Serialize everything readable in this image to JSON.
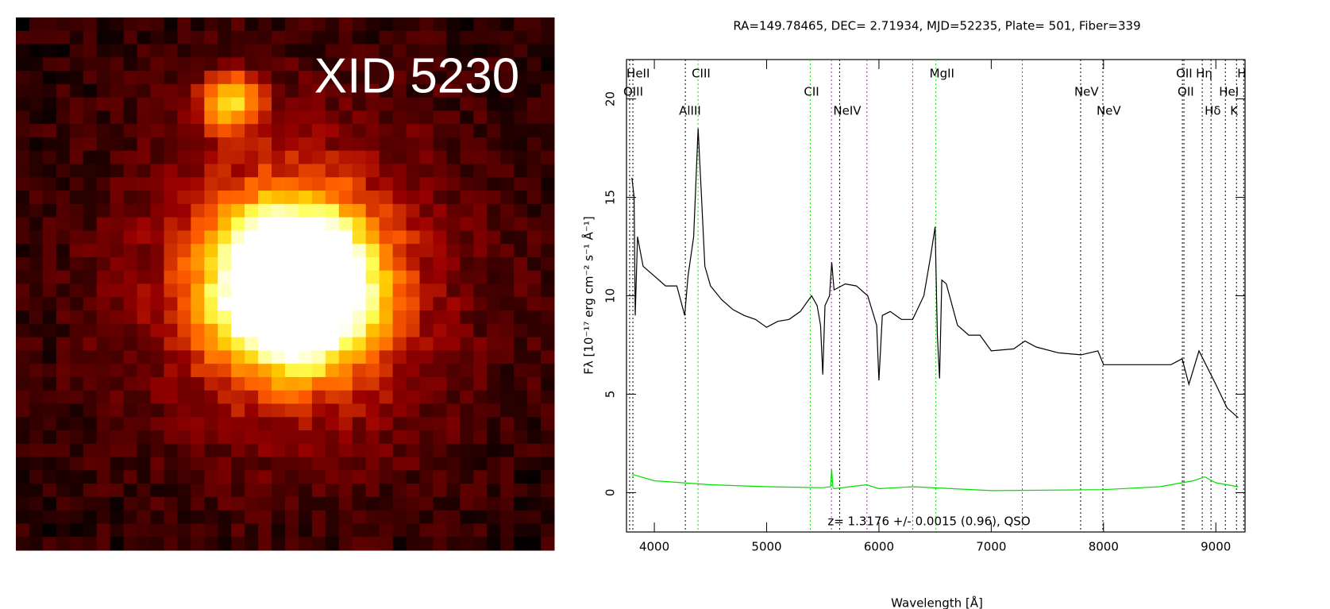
{
  "image": {
    "label": "XID 5230"
  },
  "chart_data": {
    "type": "line",
    "title": "RA=149.78465, DEC= 2.71934, MJD=52235, Plate= 501, Fiber=339",
    "y_label": "Fλ [10⁻¹⁷ erg cm⁻² s⁻¹ Å⁻¹]",
    "x_label": "Wavelength [Å]",
    "annotation": "z= 1.3176 +/- 0.0015 (0.96), QSO",
    "xlim": [
      3752,
      9260
    ],
    "ylim": [
      -2,
      22
    ],
    "xticks": [
      4000,
      5000,
      6000,
      7000,
      8000,
      9000
    ],
    "yticks": [
      0,
      5,
      10,
      15,
      20
    ],
    "series": [
      {
        "name": "flux",
        "color": "#000000",
        "x": [
          3800,
          3820,
          3830,
          3850,
          3900,
          4000,
          4100,
          4200,
          4270,
          4300,
          4350,
          4390,
          4420,
          4450,
          4500,
          4600,
          4700,
          4800,
          4900,
          5000,
          5100,
          5200,
          5300,
          5400,
          5450,
          5480,
          5500,
          5520,
          5560,
          5580,
          5600,
          5700,
          5800,
          5900,
          5980,
          6000,
          6030,
          6100,
          6200,
          6300,
          6400,
          6460,
          6500,
          6520,
          6540,
          6560,
          6600,
          6700,
          6800,
          6900,
          7000,
          7200,
          7300,
          7400,
          7600,
          7800,
          7950,
          8000,
          8200,
          8400,
          8600,
          8700,
          8760,
          8850,
          9000,
          9100,
          9200
        ],
        "values": [
          16,
          15,
          9,
          13,
          11.5,
          11,
          10.5,
          10.5,
          9,
          11,
          13,
          18.5,
          15,
          11.5,
          10.5,
          9.8,
          9.3,
          9,
          8.8,
          8.4,
          8.7,
          8.8,
          9.2,
          10,
          9.5,
          8.5,
          6,
          9.5,
          10,
          11.7,
          10.3,
          10.6,
          10.5,
          10,
          8.5,
          5.7,
          9,
          9.2,
          8.8,
          8.8,
          10,
          12,
          13.5,
          8,
          5.8,
          10.8,
          10.6,
          8.5,
          8,
          8,
          7.2,
          7.3,
          7.7,
          7.4,
          7.1,
          7,
          7.2,
          6.5,
          6.5,
          6.5,
          6.5,
          6.8,
          5.5,
          7.2,
          5.5,
          4.3,
          3.8
        ]
      },
      {
        "name": "error",
        "color": "#00e000",
        "x": [
          3800,
          3820,
          4000,
          4500,
          5000,
          5500,
          5570,
          5578,
          5590,
          5600,
          5890,
          6000,
          6300,
          7000,
          8000,
          8500,
          8800,
          8900,
          9000,
          9200
        ],
        "values": [
          0.9,
          0.9,
          0.6,
          0.4,
          0.3,
          0.25,
          0.3,
          1.2,
          0.3,
          0.2,
          0.4,
          0.2,
          0.3,
          0.1,
          0.15,
          0.3,
          0.6,
          0.8,
          0.5,
          0.3
        ]
      }
    ],
    "lines": [
      {
        "label": "HeII",
        "x": 3809,
        "color": "#000000"
      },
      {
        "label": "OIII",
        "x": 3780,
        "color": "#000000"
      },
      {
        "label": "AlIII",
        "x": 4276,
        "color": "#000000"
      },
      {
        "label": "CIII",
        "x": 4389,
        "color": "#00e000"
      },
      {
        "label": "CII",
        "x": 5388,
        "color": "#00e000"
      },
      {
        "label": "NeIV",
        "x": 5650,
        "color": "#000000"
      },
      {
        "label": "MgII",
        "x": 6507,
        "color": "#00e000"
      },
      {
        "label": "NeV",
        "x": 7796,
        "color": "#000000"
      },
      {
        "label": "NeV",
        "x": 7994,
        "color": "#000000"
      },
      {
        "label": "OII",
        "x": 8702,
        "color": "#000000"
      },
      {
        "label": "OII",
        "x": 8716,
        "color": "#000000"
      },
      {
        "label": "Hη",
        "x": 8879,
        "color": "#000000"
      },
      {
        "label": "Hδ",
        "x": 8957,
        "color": "#000000"
      },
      {
        "label": "HeI",
        "x": 9085,
        "color": "#000000"
      },
      {
        "label": "K",
        "x": 9184,
        "color": "#000000"
      },
      {
        "label": "H",
        "x": 9248,
        "color": "#000000"
      }
    ],
    "sky_lines": {
      "color": "#e000e0",
      "x": [
        5577,
        5893,
        6300,
        7277
      ]
    }
  }
}
